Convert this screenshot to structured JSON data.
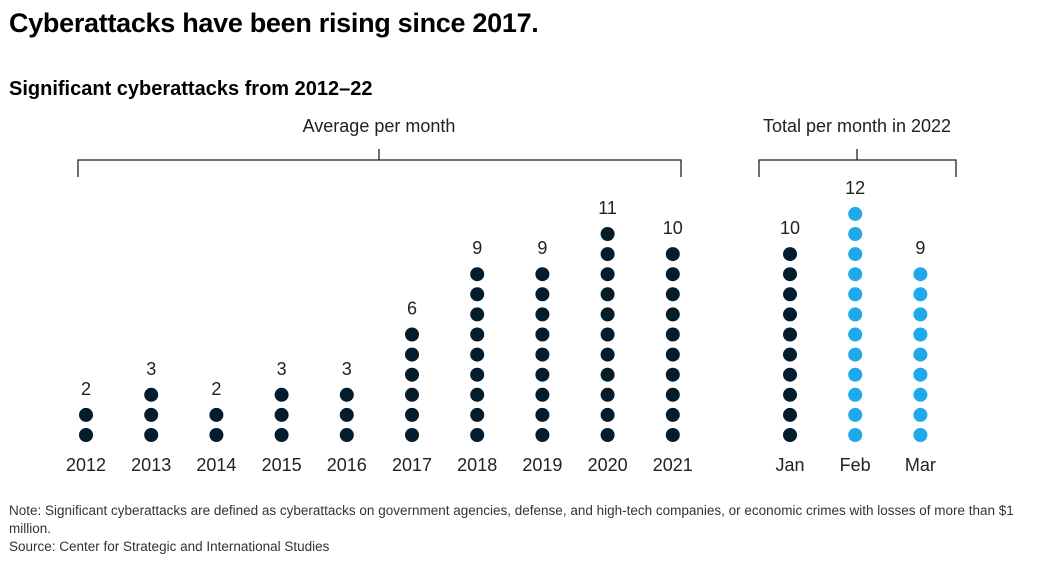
{
  "title": "Cyberattacks have been rising since 2017.",
  "subtitle": "Significant cyberattacks from 2012–22",
  "colors": {
    "dark": "#051c2c",
    "highlight": "#1fa9ea",
    "bracket": "#222222"
  },
  "chart_data": [
    {
      "type": "dot-column",
      "group_label": "Average per month",
      "categories": [
        "2012",
        "2013",
        "2014",
        "2015",
        "2016",
        "2017",
        "2018",
        "2019",
        "2020",
        "2021"
      ],
      "values": [
        2,
        3,
        2,
        3,
        3,
        6,
        9,
        9,
        11,
        10
      ],
      "highlight": [
        false,
        false,
        false,
        false,
        false,
        false,
        false,
        false,
        false,
        false
      ]
    },
    {
      "type": "dot-column",
      "group_label": "Total per month in 2022",
      "categories": [
        "Jan",
        "Feb",
        "Mar"
      ],
      "values": [
        10,
        12,
        9
      ],
      "highlight": [
        false,
        true,
        true
      ]
    }
  ],
  "note": "Note: Significant cyberattacks are defined as cyberattacks on government agencies, defense, and high-tech companies, or economic crimes with losses of more than $1 million.",
  "source": "Source: Center for Strategic and International Studies"
}
